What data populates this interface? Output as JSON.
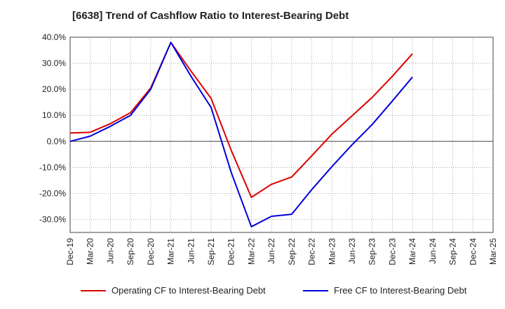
{
  "chart_data": {
    "type": "line",
    "title": "[6638]  Trend of Cashflow Ratio to Interest-Bearing Debt",
    "xlabel": "",
    "ylabel": "",
    "categories": [
      "Dec-19",
      "Mar-20",
      "Jun-20",
      "Sep-20",
      "Dec-20",
      "Mar-21",
      "Jun-21",
      "Sep-21",
      "Dec-21",
      "Mar-22",
      "Jun-22",
      "Sep-22",
      "Dec-22",
      "Mar-23",
      "Jun-23",
      "Sep-23",
      "Dec-23",
      "Mar-24",
      "Jun-24",
      "Sep-24",
      "Dec-24",
      "Mar-25"
    ],
    "ylim": [
      -35,
      40
    ],
    "yticks": [
      40,
      30,
      20,
      10,
      0,
      -10,
      -20,
      -30
    ],
    "ytick_labels": [
      "40.0%",
      "30.0%",
      "20.0%",
      "10.0%",
      "0.0%",
      "-10.0%",
      "-20.0%",
      "-30.0%"
    ],
    "grid": true,
    "legend_position": "bottom",
    "series": [
      {
        "name": "Operating CF to Interest-Bearing Debt",
        "color": "#dd0000",
        "values": [
          3.2,
          3.5,
          6.8,
          11.0,
          20.5,
          38.0,
          27.0,
          16.5,
          -3.5,
          -21.5,
          -16.5,
          -13.7,
          -5.5,
          2.8,
          9.8,
          16.9,
          25.0,
          33.7,
          null,
          null,
          null,
          null
        ]
      },
      {
        "name": "Free CF to Interest-Bearing Debt",
        "color": "#0000dd",
        "values": [
          0.0,
          2.0,
          5.8,
          10.0,
          20.0,
          38.0,
          25.0,
          13.0,
          -12.0,
          -32.8,
          -28.8,
          -28.0,
          -18.5,
          -9.7,
          -1.3,
          6.5,
          15.5,
          24.7,
          null,
          null,
          null,
          null
        ]
      }
    ]
  }
}
